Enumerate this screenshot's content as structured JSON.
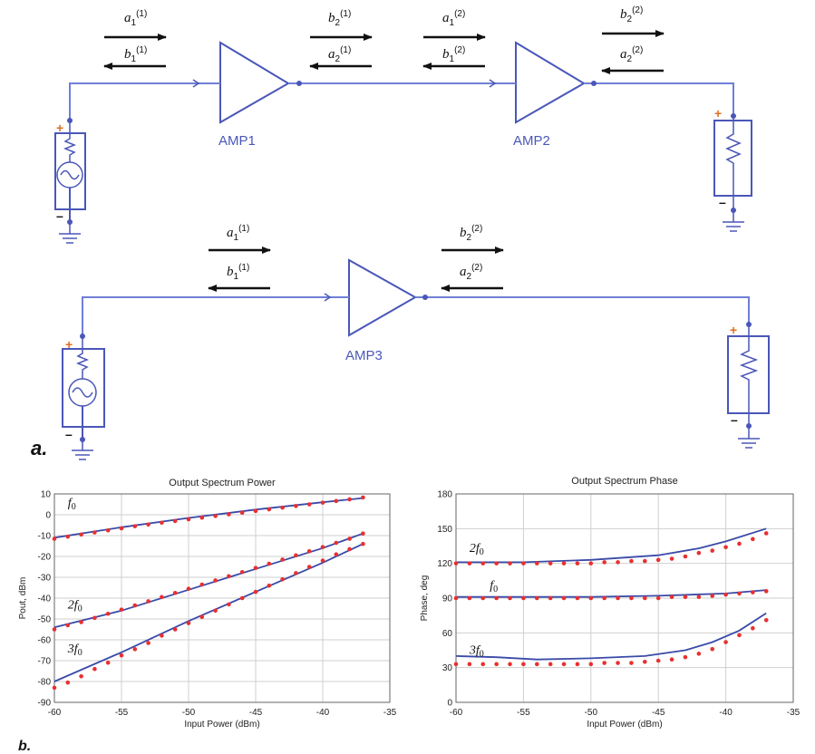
{
  "schematic": {
    "amp_labels": [
      "AMP1",
      "AMP2",
      "AMP3"
    ],
    "panel_a_label": "a.",
    "panel_b_label": "b.",
    "waves": [
      {
        "base": "a",
        "sub": "1",
        "sup": "(1)"
      },
      {
        "base": "b",
        "sub": "1",
        "sup": "(1)"
      },
      {
        "base": "b",
        "sub": "2",
        "sup": "(1)"
      },
      {
        "base": "a",
        "sub": "2",
        "sup": "(1)"
      },
      {
        "base": "a",
        "sub": "1",
        "sup": "(2)"
      },
      {
        "base": "b",
        "sub": "1",
        "sup": "(2)"
      },
      {
        "base": "b",
        "sub": "2",
        "sup": "(2)"
      },
      {
        "base": "a",
        "sub": "2",
        "sup": "(2)"
      },
      {
        "base": "a",
        "sub": "1",
        "sup": "(1)"
      },
      {
        "base": "b",
        "sub": "1",
        "sup": "(1)"
      },
      {
        "base": "b",
        "sub": "2",
        "sup": "(2)"
      },
      {
        "base": "a",
        "sub": "2",
        "sup": "(2)"
      }
    ],
    "colors": {
      "wire": "#6f7fd6",
      "component": "#4a57b8",
      "plus": "#e07020",
      "arrow": "#111111"
    }
  },
  "chart_data": [
    {
      "type": "scatter",
      "title": "Output Spectrum Power",
      "xlabel": "Input Power (dBm)",
      "ylabel": "Pout, dBm",
      "xlim": [
        -60,
        -35
      ],
      "ylim": [
        -90,
        10
      ],
      "xticks": [
        "-60",
        "-55",
        "-50",
        "-45",
        "-40",
        "-35"
      ],
      "yticks": [
        "10",
        "0",
        "-10",
        "-20",
        "-30",
        "-40",
        "-50",
        "-60",
        "-70",
        "-80",
        "-90"
      ],
      "grid": true,
      "annotations": [
        {
          "base": "f",
          "sub": "0",
          "x": -59,
          "y": 4
        },
        {
          "base": "2f",
          "sub": "0",
          "x": -59,
          "y": -45
        },
        {
          "base": "3f",
          "sub": "0",
          "x": -59,
          "y": -66
        }
      ],
      "series": [
        {
          "x": [
            -60,
            -55,
            -50,
            -45,
            -40,
            -37
          ],
          "y": [
            -11,
            -6,
            -1.5,
            2.5,
            6,
            8
          ],
          "mx": [
            -60,
            -59,
            -58,
            -57,
            -56,
            -55,
            -54,
            -53,
            -52,
            -51,
            -50,
            -49,
            -48,
            -47,
            -46,
            -45,
            -44,
            -43,
            -42,
            -41,
            -40,
            -39,
            -38,
            -37
          ],
          "my": [
            -11.5,
            -10.5,
            -9.5,
            -8.5,
            -7.5,
            -6.5,
            -5.5,
            -4.7,
            -3.8,
            -3,
            -2.2,
            -1.4,
            -0.6,
            0.2,
            1,
            1.8,
            2.6,
            3.4,
            4.2,
            5,
            5.8,
            6.6,
            7.4,
            8.3
          ]
        },
        {
          "x": [
            -60,
            -55,
            -50,
            -45,
            -40,
            -37
          ],
          "y": [
            -54,
            -46,
            -36,
            -26,
            -16,
            -9
          ],
          "mx": [
            -60,
            -59,
            -58,
            -57,
            -56,
            -55,
            -54,
            -53,
            -52,
            -51,
            -50,
            -49,
            -48,
            -47,
            -46,
            -45,
            -44,
            -43,
            -42,
            -41,
            -40,
            -39,
            -38,
            -37
          ],
          "my": [
            -55,
            -53,
            -51.5,
            -49.5,
            -47.5,
            -45.5,
            -43.5,
            -41.5,
            -39.5,
            -37.5,
            -35.5,
            -33.5,
            -31.5,
            -29.5,
            -27.5,
            -25.5,
            -23.5,
            -21.5,
            -19.5,
            -17.5,
            -15.5,
            -13.5,
            -11.5,
            -9
          ]
        },
        {
          "x": [
            -60,
            -55,
            -50,
            -45,
            -40,
            -37
          ],
          "y": [
            -80,
            -66,
            -51,
            -37,
            -23,
            -14
          ],
          "mx": [
            -60,
            -59,
            -58,
            -57,
            -56,
            -55,
            -54,
            -53,
            -52,
            -51,
            -50,
            -49,
            -48,
            -47,
            -46,
            -45,
            -44,
            -43,
            -42,
            -41,
            -40,
            -39,
            -38,
            -37
          ],
          "my": [
            -83,
            -80.5,
            -77.5,
            -74,
            -71,
            -67.5,
            -64.5,
            -61.5,
            -58,
            -55,
            -52,
            -49,
            -46,
            -43,
            -40,
            -37,
            -34,
            -31,
            -28,
            -25,
            -22,
            -19,
            -16.5,
            -14
          ]
        }
      ],
      "colors": {
        "line": "#3a4aa8",
        "marker": "#e83030",
        "grid": "#cfcfcf"
      }
    },
    {
      "type": "scatter",
      "title": "Output Spectrum Phase",
      "xlabel": "Input Power (dBm)",
      "ylabel": "Phase, deg",
      "xlim": [
        -60,
        -35
      ],
      "ylim": [
        0,
        180
      ],
      "xticks": [
        "-60",
        "-55",
        "-50",
        "-45",
        "-40",
        "-35"
      ],
      "yticks": [
        "180",
        "150",
        "120",
        "90",
        "60",
        "30",
        "0"
      ],
      "grid": true,
      "annotations": [
        {
          "base": "2f",
          "sub": "0",
          "x": -59,
          "y": 130
        },
        {
          "base": "f",
          "sub": "0",
          "x": -57.5,
          "y": 98
        },
        {
          "base": "3f",
          "sub": "0",
          "x": -59,
          "y": 42
        }
      ],
      "series": [
        {
          "x": [
            -60,
            -55,
            -50,
            -45,
            -42,
            -40,
            -37
          ],
          "y": [
            121,
            121,
            123,
            127,
            133,
            139,
            150
          ],
          "mx": [
            -60,
            -59,
            -58,
            -57,
            -56,
            -55,
            -54,
            -53,
            -52,
            -51,
            -50,
            -49,
            -48,
            -47,
            -46,
            -45,
            -44,
            -43,
            -42,
            -41,
            -40,
            -39,
            -38,
            -37
          ],
          "my": [
            120,
            120,
            120,
            120,
            120,
            120,
            120,
            120,
            120,
            120,
            120,
            121,
            121,
            122,
            122,
            123,
            124,
            126,
            129,
            131,
            134,
            137,
            141,
            146
          ]
        },
        {
          "x": [
            -60,
            -55,
            -50,
            -45,
            -40,
            -37
          ],
          "y": [
            91,
            91,
            91,
            92,
            94,
            97
          ],
          "mx": [
            -60,
            -59,
            -58,
            -57,
            -56,
            -55,
            -54,
            -53,
            -52,
            -51,
            -50,
            -49,
            -48,
            -47,
            -46,
            -45,
            -44,
            -43,
            -42,
            -41,
            -40,
            -39,
            -38,
            -37
          ],
          "my": [
            90,
            90,
            90,
            90,
            90,
            90,
            90,
            90,
            90,
            90,
            90,
            90,
            90,
            90,
            90,
            90,
            91,
            91,
            91,
            92,
            93,
            94,
            95,
            96
          ]
        },
        {
          "x": [
            -60,
            -57,
            -54,
            -50,
            -46,
            -43,
            -41,
            -39,
            -37
          ],
          "y": [
            40,
            39,
            37,
            38,
            40,
            45,
            52,
            62,
            77
          ],
          "mx": [
            -60,
            -59,
            -58,
            -57,
            -56,
            -55,
            -54,
            -53,
            -52,
            -51,
            -50,
            -49,
            -48,
            -47,
            -46,
            -45,
            -44,
            -43,
            -42,
            -41,
            -40,
            -39,
            -38,
            -37
          ],
          "my": [
            33,
            33,
            33,
            33,
            33,
            33,
            33,
            33,
            33,
            33,
            33,
            34,
            34,
            34,
            35,
            36,
            37,
            39,
            42,
            46,
            52,
            58,
            64,
            71
          ]
        }
      ],
      "colors": {
        "line": "#3a4aa8",
        "marker": "#e83030",
        "grid": "#cfcfcf"
      }
    }
  ]
}
